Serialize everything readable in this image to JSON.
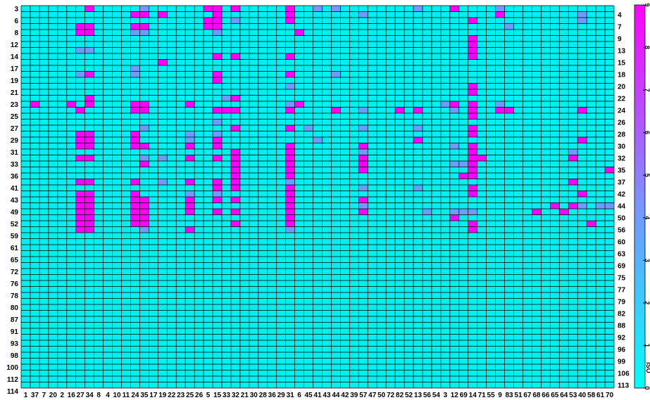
{
  "chart_data": {
    "type": "heatmap",
    "columns": [
      "1",
      "37",
      "7",
      "20",
      "2",
      "16",
      "27",
      "34",
      "8",
      "4",
      "10",
      "11",
      "24",
      "35",
      "17",
      "19",
      "22",
      "23",
      "25",
      "26",
      "5",
      "15",
      "33",
      "32",
      "21",
      "30",
      "28",
      "36",
      "29",
      "31",
      "6",
      "45",
      "41",
      "43",
      "44",
      "42",
      "39",
      "57",
      "47",
      "50",
      "72",
      "82",
      "52",
      "13",
      "56",
      "54",
      "3",
      "12",
      "69",
      "14",
      "71",
      "55",
      "9",
      "83",
      "51",
      "67",
      "68",
      "66",
      "65",
      "64",
      "53",
      "40",
      "58",
      "61",
      "70"
    ],
    "rows_left": [
      "3",
      "6",
      "7",
      "8",
      "9",
      "12",
      "13",
      "14",
      "15",
      "17",
      "18",
      "19",
      "20",
      "21",
      "22",
      "23",
      "24",
      "25",
      "26",
      "27",
      "28",
      "29",
      "30",
      "31",
      "32",
      "33",
      "35",
      "36",
      "37",
      "41",
      "42",
      "43",
      "44",
      "49",
      "50",
      "52",
      "56",
      "59",
      "60",
      "61",
      "63",
      "65",
      "69",
      "72",
      "75",
      "76",
      "77",
      "78",
      "79",
      "80",
      "82",
      "87",
      "88",
      "91",
      "92",
      "93",
      "96",
      "98",
      "99",
      "100",
      "106",
      "112",
      "113",
      "114"
    ],
    "left_labeled_rows": [
      "3",
      "6",
      "8",
      "12",
      "14",
      "17",
      "19",
      "21",
      "23",
      "25",
      "27",
      "29",
      "31",
      "33",
      "36",
      "41",
      "43",
      "49",
      "52",
      "59",
      "61",
      "65",
      "72",
      "76",
      "78",
      "80",
      "87",
      "91",
      "93",
      "98",
      "100",
      "112",
      "114"
    ],
    "right_labeled_rows": [
      "4",
      "7",
      "9",
      "13",
      "15",
      "18",
      "20",
      "22",
      "24",
      "26",
      "28",
      "30",
      "32",
      "35",
      "37",
      "42",
      "44",
      "50",
      "56",
      "60",
      "63",
      "69",
      "75",
      "77",
      "79",
      "82",
      "88",
      "92",
      "96",
      "99",
      "106",
      "113"
    ],
    "colorbar": {
      "ticks": [
        "0",
        "1",
        "2",
        "3",
        "4",
        "5",
        "6",
        "7",
        "8",
        "9"
      ],
      "label": "ISO",
      "range": [
        0,
        9
      ],
      "colors": [
        "#00ffff",
        "#ff00ff"
      ]
    },
    "cells": [
      [
        0,
        "34",
        9
      ],
      [
        0,
        "35",
        4
      ],
      [
        0,
        "5",
        9
      ],
      [
        0,
        "15",
        9
      ],
      [
        0,
        "32",
        9
      ],
      [
        0,
        "31",
        9
      ],
      [
        0,
        "12",
        9
      ],
      [
        0,
        "9",
        4
      ],
      [
        0,
        "41",
        3
      ],
      [
        0,
        "44",
        4
      ],
      [
        0,
        "13",
        4
      ],
      [
        1,
        "24",
        9
      ],
      [
        1,
        "35",
        9
      ],
      [
        1,
        "19",
        9
      ],
      [
        1,
        "15",
        9
      ],
      [
        1,
        "31",
        9
      ],
      [
        1,
        "9",
        9
      ],
      [
        1,
        "40",
        4
      ],
      [
        1,
        "57",
        4
      ],
      [
        2,
        "15",
        9
      ],
      [
        2,
        "5",
        9
      ],
      [
        2,
        "31",
        9
      ],
      [
        2,
        "14",
        9
      ],
      [
        2,
        "40",
        4
      ],
      [
        2,
        "32",
        4
      ],
      [
        3,
        "27",
        9
      ],
      [
        3,
        "34",
        9
      ],
      [
        3,
        "24",
        9
      ],
      [
        3,
        "35",
        9
      ],
      [
        3,
        "15",
        9
      ],
      [
        3,
        "5",
        9
      ],
      [
        3,
        "83",
        4
      ],
      [
        4,
        "27",
        9
      ],
      [
        4,
        "34",
        9
      ],
      [
        4,
        "24",
        4
      ],
      [
        4,
        "35",
        4
      ],
      [
        4,
        "6",
        9
      ],
      [
        4,
        "15",
        4
      ],
      [
        5,
        "14",
        9
      ],
      [
        6,
        "14",
        9
      ],
      [
        7,
        "27",
        4
      ],
      [
        7,
        "34",
        4
      ],
      [
        7,
        "14",
        9
      ],
      [
        8,
        "15",
        9
      ],
      [
        8,
        "32",
        9
      ],
      [
        8,
        "31",
        9
      ],
      [
        8,
        "14",
        9
      ],
      [
        9,
        "19",
        9
      ],
      [
        10,
        "24",
        4
      ],
      [
        11,
        "27",
        4
      ],
      [
        11,
        "34",
        9
      ],
      [
        11,
        "24",
        4
      ],
      [
        11,
        "15",
        9
      ],
      [
        11,
        "31",
        9
      ],
      [
        11,
        "44",
        4
      ],
      [
        12,
        "15",
        9
      ],
      [
        13,
        "14",
        9
      ],
      [
        13,
        "31",
        4
      ],
      [
        14,
        "14",
        9
      ],
      [
        15,
        "34",
        9
      ],
      [
        15,
        "33",
        4
      ],
      [
        15,
        "32",
        9
      ],
      [
        16,
        "37",
        9
      ],
      [
        16,
        "16",
        9
      ],
      [
        16,
        "34",
        9
      ],
      [
        16,
        "24",
        9
      ],
      [
        16,
        "35",
        9
      ],
      [
        16,
        "25",
        9
      ],
      [
        16,
        "31",
        4
      ],
      [
        16,
        "6",
        9
      ],
      [
        16,
        "3",
        4
      ],
      [
        16,
        "12",
        9
      ],
      [
        16,
        "14",
        9
      ],
      [
        16,
        "9",
        4
      ],
      [
        17,
        "27",
        9
      ],
      [
        17,
        "24",
        9
      ],
      [
        17,
        "35",
        9
      ],
      [
        17,
        "15",
        9
      ],
      [
        17,
        "33",
        9
      ],
      [
        17,
        "32",
        9
      ],
      [
        17,
        "31",
        9
      ],
      [
        17,
        "44",
        9
      ],
      [
        17,
        "57",
        4
      ],
      [
        17,
        "82",
        9
      ],
      [
        17,
        "13",
        9
      ],
      [
        17,
        "12",
        4
      ],
      [
        17,
        "14",
        9
      ],
      [
        17,
        "9",
        9
      ],
      [
        17,
        "83",
        9
      ],
      [
        17,
        "40",
        9
      ],
      [
        18,
        "14",
        9
      ],
      [
        19,
        "15",
        4
      ],
      [
        20,
        "35",
        4
      ],
      [
        20,
        "32",
        9
      ],
      [
        20,
        "31",
        9
      ],
      [
        20,
        "45",
        4
      ],
      [
        20,
        "57",
        4
      ],
      [
        20,
        "13",
        4
      ],
      [
        20,
        "14",
        9
      ],
      [
        21,
        "27",
        9
      ],
      [
        21,
        "34",
        9
      ],
      [
        21,
        "24",
        9
      ],
      [
        21,
        "25",
        4
      ],
      [
        21,
        "15",
        4
      ],
      [
        21,
        "14",
        9
      ],
      [
        22,
        "27",
        9
      ],
      [
        22,
        "34",
        9
      ],
      [
        22,
        "24",
        9
      ],
      [
        22,
        "25",
        4
      ],
      [
        22,
        "15",
        9
      ],
      [
        22,
        "13",
        9
      ],
      [
        22,
        "41",
        3
      ],
      [
        22,
        "40",
        9
      ],
      [
        23,
        "27",
        9
      ],
      [
        23,
        "34",
        9
      ],
      [
        23,
        "24",
        9
      ],
      [
        23,
        "35",
        9
      ],
      [
        23,
        "25",
        9
      ],
      [
        23,
        "15",
        9
      ],
      [
        23,
        "31",
        9
      ],
      [
        23,
        "57",
        9
      ],
      [
        23,
        "14",
        9
      ],
      [
        23,
        "12",
        4
      ],
      [
        24,
        "32",
        9
      ],
      [
        24,
        "31",
        9
      ],
      [
        24,
        "57",
        4
      ],
      [
        24,
        "14",
        9
      ],
      [
        24,
        "53",
        4
      ],
      [
        25,
        "27",
        9
      ],
      [
        25,
        "34",
        9
      ],
      [
        25,
        "35",
        4
      ],
      [
        25,
        "19",
        4
      ],
      [
        25,
        "25",
        9
      ],
      [
        25,
        "15",
        9
      ],
      [
        25,
        "32",
        9
      ],
      [
        25,
        "31",
        9
      ],
      [
        25,
        "57",
        9
      ],
      [
        25,
        "14",
        9
      ],
      [
        25,
        "71",
        9
      ],
      [
        25,
        "53",
        9
      ],
      [
        26,
        "35",
        9
      ],
      [
        26,
        "32",
        9
      ],
      [
        26,
        "31",
        9
      ],
      [
        26,
        "57",
        9
      ],
      [
        26,
        "12",
        4
      ],
      [
        26,
        "14",
        9
      ],
      [
        26,
        "69",
        4
      ],
      [
        27,
        "32",
        9
      ],
      [
        27,
        "31",
        9
      ],
      [
        27,
        "57",
        9
      ],
      [
        27,
        "14",
        9
      ],
      [
        27,
        "70",
        9
      ],
      [
        28,
        "32",
        9
      ],
      [
        28,
        "31",
        9
      ],
      [
        28,
        "14",
        9
      ],
      [
        28,
        "69",
        9
      ],
      [
        29,
        "27",
        9
      ],
      [
        29,
        "34",
        9
      ],
      [
        29,
        "24",
        9
      ],
      [
        29,
        "25",
        9
      ],
      [
        29,
        "15",
        9
      ],
      [
        29,
        "32",
        9
      ],
      [
        29,
        "31",
        4
      ],
      [
        29,
        "19",
        4
      ],
      [
        29,
        "53",
        9
      ],
      [
        30,
        "15",
        9
      ],
      [
        30,
        "32",
        9
      ],
      [
        30,
        "31",
        9
      ],
      [
        30,
        "57",
        4
      ],
      [
        30,
        "13",
        4
      ],
      [
        30,
        "14",
        9
      ],
      [
        31,
        "27",
        9
      ],
      [
        31,
        "34",
        9
      ],
      [
        31,
        "24",
        9
      ],
      [
        31,
        "25",
        4
      ],
      [
        31,
        "15",
        4
      ],
      [
        31,
        "31",
        9
      ],
      [
        31,
        "14",
        9
      ],
      [
        31,
        "40",
        9
      ],
      [
        32,
        "27",
        9
      ],
      [
        32,
        "34",
        9
      ],
      [
        32,
        "24",
        9
      ],
      [
        32,
        "35",
        9
      ],
      [
        32,
        "25",
        9
      ],
      [
        32,
        "15",
        9
      ],
      [
        32,
        "32",
        9
      ],
      [
        32,
        "31",
        9
      ],
      [
        32,
        "57",
        9
      ],
      [
        33,
        "27",
        9
      ],
      [
        33,
        "34",
        9
      ],
      [
        33,
        "24",
        9
      ],
      [
        33,
        "35",
        9
      ],
      [
        33,
        "25",
        9
      ],
      [
        33,
        "31",
        9
      ],
      [
        33,
        "57",
        4
      ],
      [
        33,
        "65",
        9
      ],
      [
        33,
        "53",
        9
      ],
      [
        33,
        "40",
        4
      ],
      [
        33,
        "61",
        4
      ],
      [
        33,
        "70",
        4
      ],
      [
        34,
        "27",
        9
      ],
      [
        34,
        "34",
        9
      ],
      [
        34,
        "24",
        9
      ],
      [
        34,
        "35",
        9
      ],
      [
        34,
        "25",
        9
      ],
      [
        34,
        "15",
        9
      ],
      [
        34,
        "32",
        9
      ],
      [
        34,
        "31",
        9
      ],
      [
        34,
        "57",
        9
      ],
      [
        34,
        "56",
        4
      ],
      [
        34,
        "12",
        4
      ],
      [
        34,
        "14",
        4
      ],
      [
        34,
        "69",
        4
      ],
      [
        34,
        "68",
        9
      ],
      [
        34,
        "64",
        9
      ],
      [
        35,
        "27",
        9
      ],
      [
        35,
        "34",
        9
      ],
      [
        35,
        "24",
        9
      ],
      [
        35,
        "35",
        9
      ],
      [
        35,
        "31",
        9
      ],
      [
        35,
        "12",
        9
      ],
      [
        36,
        "27",
        9
      ],
      [
        36,
        "34",
        9
      ],
      [
        36,
        "24",
        9
      ],
      [
        36,
        "35",
        9
      ],
      [
        36,
        "32",
        9
      ],
      [
        36,
        "31",
        9
      ],
      [
        36,
        "14",
        9
      ],
      [
        36,
        "58",
        9
      ],
      [
        37,
        "27",
        9
      ],
      [
        37,
        "34",
        9
      ],
      [
        37,
        "35",
        4
      ],
      [
        37,
        "25",
        9
      ],
      [
        37,
        "31",
        4
      ],
      [
        37,
        "14",
        9
      ]
    ]
  }
}
